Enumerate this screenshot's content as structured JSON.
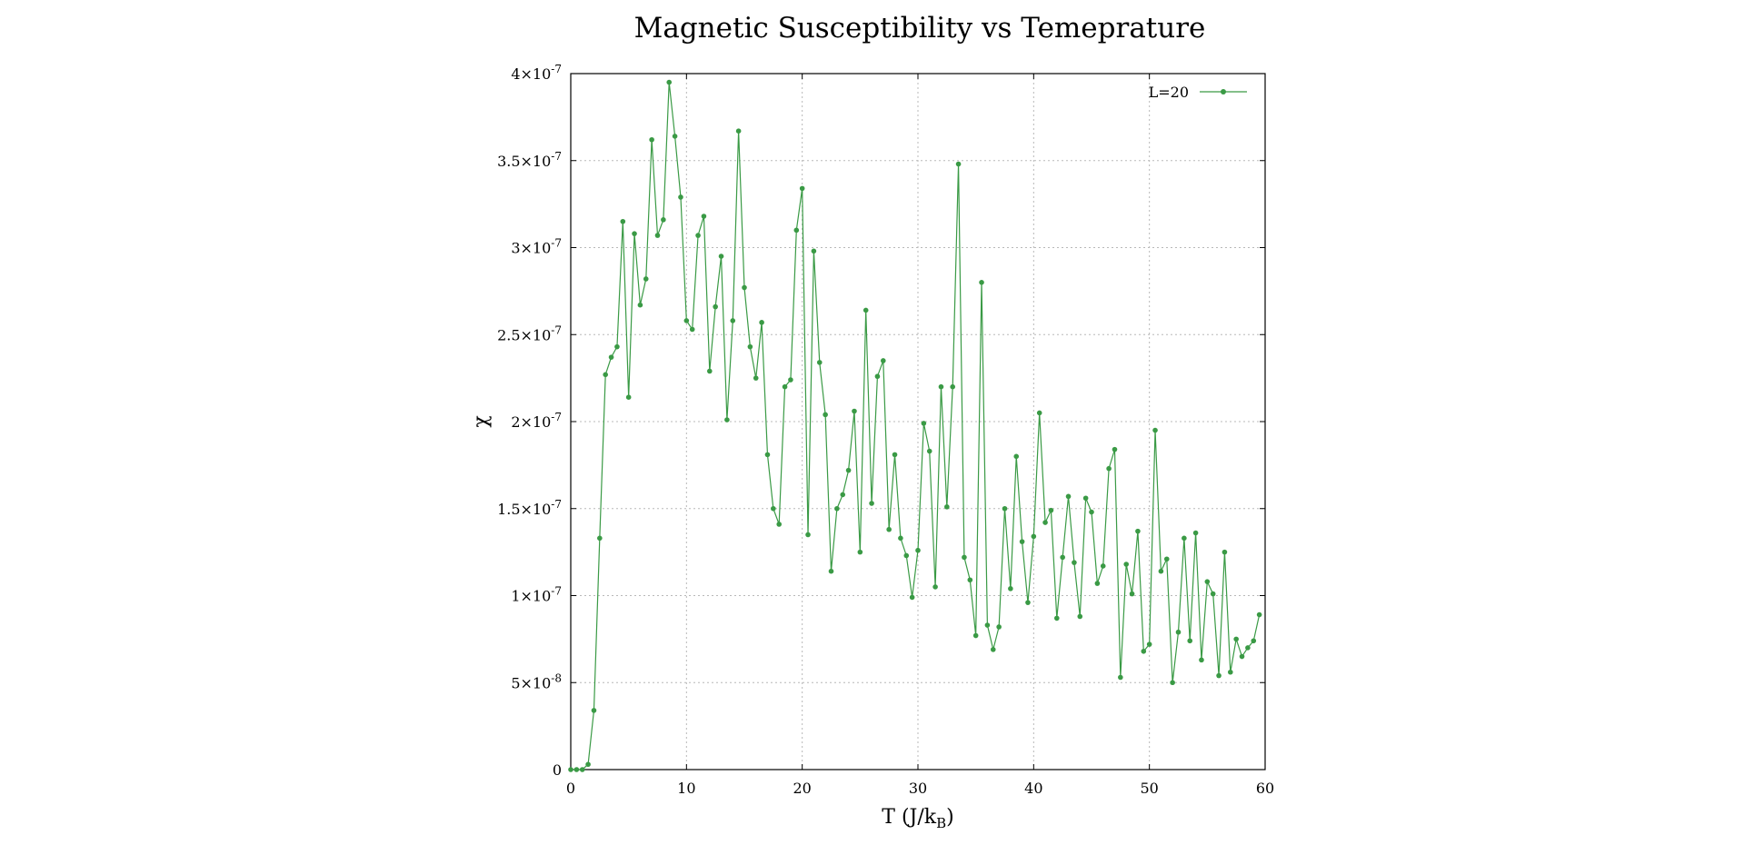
{
  "chart_data": {
    "type": "line",
    "title": "Magnetic Susceptibility vs Temeprature",
    "xlabel": "T (J/k",
    "xlabel_sub": "B",
    "xlabel_end": ")",
    "ylabel": "χ",
    "xlim": [
      0,
      60
    ],
    "ylim": [
      0,
      4e-07
    ],
    "grid": true,
    "legend_position": "top-right",
    "color": "#3a9a45",
    "x_ticks": [
      {
        "value": 0,
        "label": "0"
      },
      {
        "value": 10,
        "label": "10"
      },
      {
        "value": 20,
        "label": "20"
      },
      {
        "value": 30,
        "label": "30"
      },
      {
        "value": 40,
        "label": "40"
      },
      {
        "value": 50,
        "label": "50"
      },
      {
        "value": 60,
        "label": "60"
      }
    ],
    "y_ticks": [
      {
        "value": 0,
        "mant": "0",
        "exp": ""
      },
      {
        "value": 5e-08,
        "mant": "5×10",
        "exp": "-8"
      },
      {
        "value": 1e-07,
        "mant": "1×10",
        "exp": "-7"
      },
      {
        "value": 1.5e-07,
        "mant": "1.5×10",
        "exp": "-7"
      },
      {
        "value": 2e-07,
        "mant": "2×10",
        "exp": "-7"
      },
      {
        "value": 2.5e-07,
        "mant": "2.5×10",
        "exp": "-7"
      },
      {
        "value": 3e-07,
        "mant": "3×10",
        "exp": "-7"
      },
      {
        "value": 3.5e-07,
        "mant": "3.5×10",
        "exp": "-7"
      },
      {
        "value": 4e-07,
        "mant": "4×10",
        "exp": "-7"
      }
    ],
    "series": [
      {
        "name": "L=20",
        "x": [
          0,
          0.5,
          1.0,
          1.5,
          2.0,
          2.5,
          3.0,
          3.5,
          4.0,
          4.5,
          5.0,
          5.5,
          6.0,
          6.5,
          7.0,
          7.5,
          8.0,
          8.5,
          9.0,
          9.5,
          10.0,
          10.5,
          11.0,
          11.5,
          12.0,
          12.5,
          13.0,
          13.5,
          14.0,
          14.5,
          15.0,
          15.5,
          16.0,
          16.5,
          17.0,
          17.5,
          18.0,
          18.5,
          19.0,
          19.5,
          20.0,
          20.5,
          21.0,
          21.5,
          22.0,
          22.5,
          23.0,
          23.5,
          24.0,
          24.5,
          25.0,
          25.5,
          26.0,
          26.5,
          27.0,
          27.5,
          28.0,
          28.5,
          29.0,
          29.5,
          30.0,
          30.5,
          31.0,
          31.5,
          32.0,
          32.5,
          33.0,
          33.5,
          34.0,
          34.5,
          35.0,
          35.5,
          36.0,
          36.5,
          37.0,
          37.5,
          38.0,
          38.5,
          39.0,
          39.5,
          40.0,
          40.5,
          41.0,
          41.5,
          42.0,
          42.5,
          43.0,
          43.5,
          44.0,
          44.5,
          45.0,
          45.5,
          46.0,
          46.5,
          47.0,
          47.5,
          48.0,
          48.5,
          49.0,
          49.5,
          50.0,
          50.5,
          51.0,
          51.5,
          52.0,
          52.5,
          53.0,
          53.5,
          54.0,
          54.5,
          55.0,
          55.5,
          56.0,
          56.5,
          57.0,
          57.5,
          58.0,
          58.5,
          59.0,
          59.5
        ],
        "values": [
          0,
          0,
          0,
          3e-09,
          3.4e-08,
          1.33e-07,
          2.27e-07,
          2.37e-07,
          2.43e-07,
          3.15e-07,
          2.14e-07,
          3.08e-07,
          2.67e-07,
          2.82e-07,
          3.62e-07,
          3.07e-07,
          3.16e-07,
          3.95e-07,
          3.64e-07,
          3.29e-07,
          2.58e-07,
          2.53e-07,
          3.07e-07,
          3.18e-07,
          2.29e-07,
          2.66e-07,
          2.95e-07,
          2.01e-07,
          2.58e-07,
          3.67e-07,
          2.77e-07,
          2.43e-07,
          2.25e-07,
          2.57e-07,
          1.81e-07,
          1.5e-07,
          1.41e-07,
          2.2e-07,
          2.24e-07,
          3.1e-07,
          3.34e-07,
          1.35e-07,
          2.98e-07,
          2.34e-07,
          2.04e-07,
          1.14e-07,
          1.5e-07,
          1.58e-07,
          1.72e-07,
          2.06e-07,
          1.25e-07,
          2.64e-07,
          1.53e-07,
          2.26e-07,
          2.35e-07,
          1.38e-07,
          1.81e-07,
          1.33e-07,
          1.23e-07,
          9.9e-08,
          1.26e-07,
          1.99e-07,
          1.83e-07,
          1.05e-07,
          2.2e-07,
          1.51e-07,
          2.2e-07,
          3.48e-07,
          1.22e-07,
          1.09e-07,
          7.7e-08,
          2.8e-07,
          8.3e-08,
          6.9e-08,
          8.2e-08,
          1.5e-07,
          1.04e-07,
          1.8e-07,
          1.31e-07,
          9.6e-08,
          1.34e-07,
          2.05e-07,
          1.42e-07,
          1.49e-07,
          8.7e-08,
          1.22e-07,
          1.57e-07,
          1.19e-07,
          8.8e-08,
          1.56e-07,
          1.48e-07,
          1.07e-07,
          1.17e-07,
          1.73e-07,
          1.84e-07,
          5.3e-08,
          1.18e-07,
          1.01e-07,
          1.37e-07,
          6.8e-08,
          7.2e-08,
          1.95e-07,
          1.14e-07,
          1.21e-07,
          5e-08,
          7.9e-08,
          1.33e-07,
          7.4e-08,
          1.36e-07,
          6.3e-08,
          1.08e-07,
          1.01e-07,
          5.4e-08,
          1.25e-07,
          5.6e-08,
          7.5e-08,
          6.5e-08,
          7e-08,
          7.4e-08,
          8.9e-08
        ]
      }
    ]
  }
}
